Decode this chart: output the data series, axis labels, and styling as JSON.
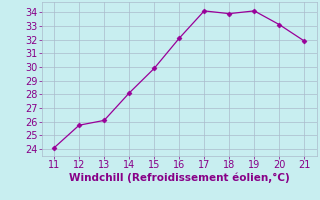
{
  "x": [
    11,
    12,
    13,
    14,
    15,
    16,
    17,
    18,
    19,
    20,
    21
  ],
  "y": [
    24.1,
    25.75,
    26.1,
    28.1,
    29.9,
    32.1,
    34.1,
    33.9,
    34.1,
    33.1,
    31.9
  ],
  "line_color": "#990099",
  "marker": "D",
  "marker_size": 2.5,
  "bg_color": "#c8eef0",
  "grid_color": "#aabbcc",
  "xlabel": "Windchill (Refroidissement éolien,°C)",
  "xlabel_color": "#880088",
  "tick_color": "#880088",
  "xlim": [
    10.5,
    21.5
  ],
  "ylim": [
    23.5,
    34.75
  ],
  "xticks": [
    11,
    12,
    13,
    14,
    15,
    16,
    17,
    18,
    19,
    20,
    21
  ],
  "yticks": [
    24,
    25,
    26,
    27,
    28,
    29,
    30,
    31,
    32,
    33,
    34
  ],
  "xlabel_fontsize": 7.5,
  "tick_fontsize": 7
}
